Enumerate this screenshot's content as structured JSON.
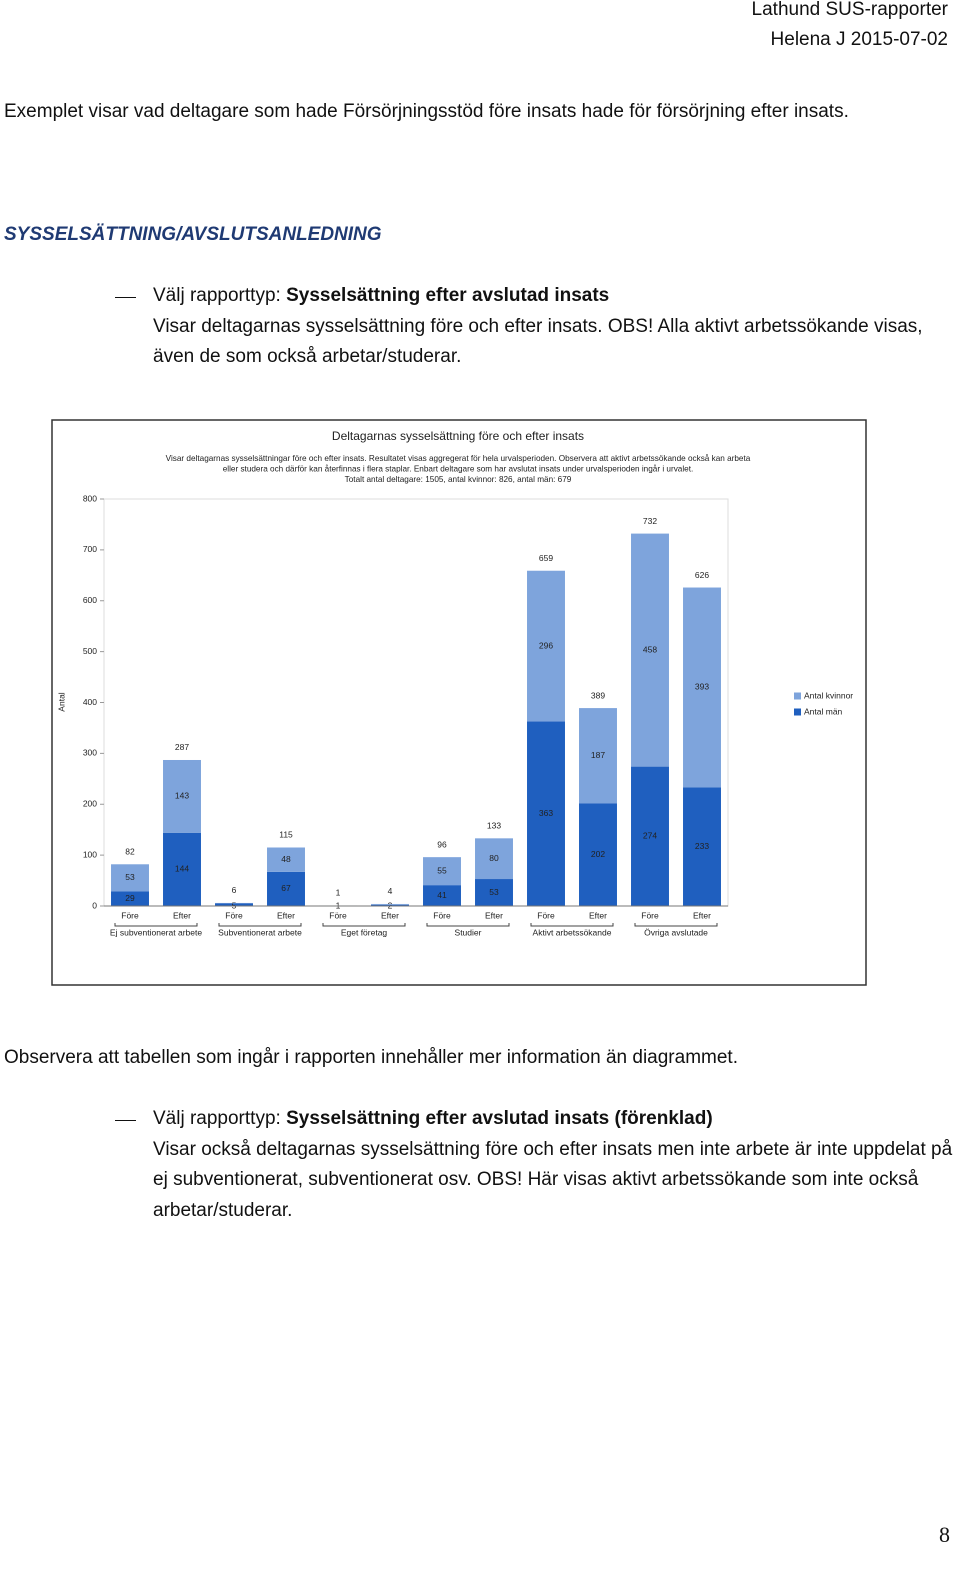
{
  "header": {
    "title": "Lathund SUS-rapporter",
    "author_date": "Helena J 2015-07-02"
  },
  "intro": "Exemplet visar vad deltagare som hade Försörjningsstöd före insats hade för försörjning efter insats.",
  "heading": "SYSSELSÄTTNING/AVSLUTSANLEDNING",
  "bullets": [
    {
      "prefix": "Välj rapporttyp:",
      "report_type": "Sysselsättning efter avslutad insats",
      "text": "Visar deltagarnas sysselsättning före och efter insats. OBS! Alla aktivt arbetssökande visas, även de som också arbetar/studerar."
    },
    {
      "prefix": "Välj rapporttyp:",
      "report_type": "Sysselsättning efter avslutad insats (förenklad)",
      "text": "Visar också deltagarnas sysselsättning före och efter insats men inte arbete är inte uppdelat på ej subventionerat, subventionerat osv. OBS! Här visas aktivt arbetssökande som inte också arbetar/studerar."
    }
  ],
  "note": "Observera att tabellen som ingår i rapporten innehåller mer information än diagrammet.",
  "page_number": "8",
  "chart_data": {
    "type": "bar",
    "stacked": true,
    "title": "Deltagarnas sysselsättning före och efter insats",
    "subtitle": [
      "Visar deltagarnas sysselsättningar före och efter insats. Resultatet visas aggregerat för hela urvalsperioden. Observera att aktivt arbetssökande också kan arbeta",
      "eller studera och därför kan återfinnas i flera staplar. Enbart deltagare som har avslutat insats under urvalsperioden ingår i urvalet.",
      "Totalt antal deltagare: 1505, antal kvinnor: 826, antal män: 679"
    ],
    "ylabel": "Antal",
    "groups": [
      {
        "name": "Ej subventionerat arbete",
        "categories": [
          "Före",
          "Efter"
        ]
      },
      {
        "name": "Subventionerat arbete",
        "categories": [
          "Före",
          "Efter"
        ]
      },
      {
        "name": "Eget företag",
        "categories": [
          "Före",
          "Efter"
        ]
      },
      {
        "name": "Studier",
        "categories": [
          "Före",
          "Efter"
        ]
      },
      {
        "name": "Aktivt arbetssökande",
        "categories": [
          "Före",
          "Efter"
        ]
      },
      {
        "name": "Övriga avslutade",
        "categories": [
          "Före",
          "Efter"
        ]
      }
    ],
    "series": [
      {
        "name": "Antal män",
        "color": "#1f5fbf",
        "values": [
          29,
          144,
          5,
          67,
          1,
          2,
          41,
          53,
          363,
          202,
          274,
          233
        ]
      },
      {
        "name": "Antal kvinnor",
        "color": "#7ea4dc",
        "values": [
          53,
          143,
          1,
          48,
          0,
          2,
          55,
          80,
          296,
          187,
          458,
          393
        ]
      }
    ],
    "totals": [
      82,
      287,
      6,
      115,
      1,
      4,
      96,
      133,
      659,
      389,
      732,
      626
    ],
    "ylim": [
      0,
      800
    ],
    "yticks": [
      0,
      100,
      200,
      300,
      400,
      500,
      600,
      700,
      800
    ],
    "grid": false,
    "legend": "right"
  }
}
